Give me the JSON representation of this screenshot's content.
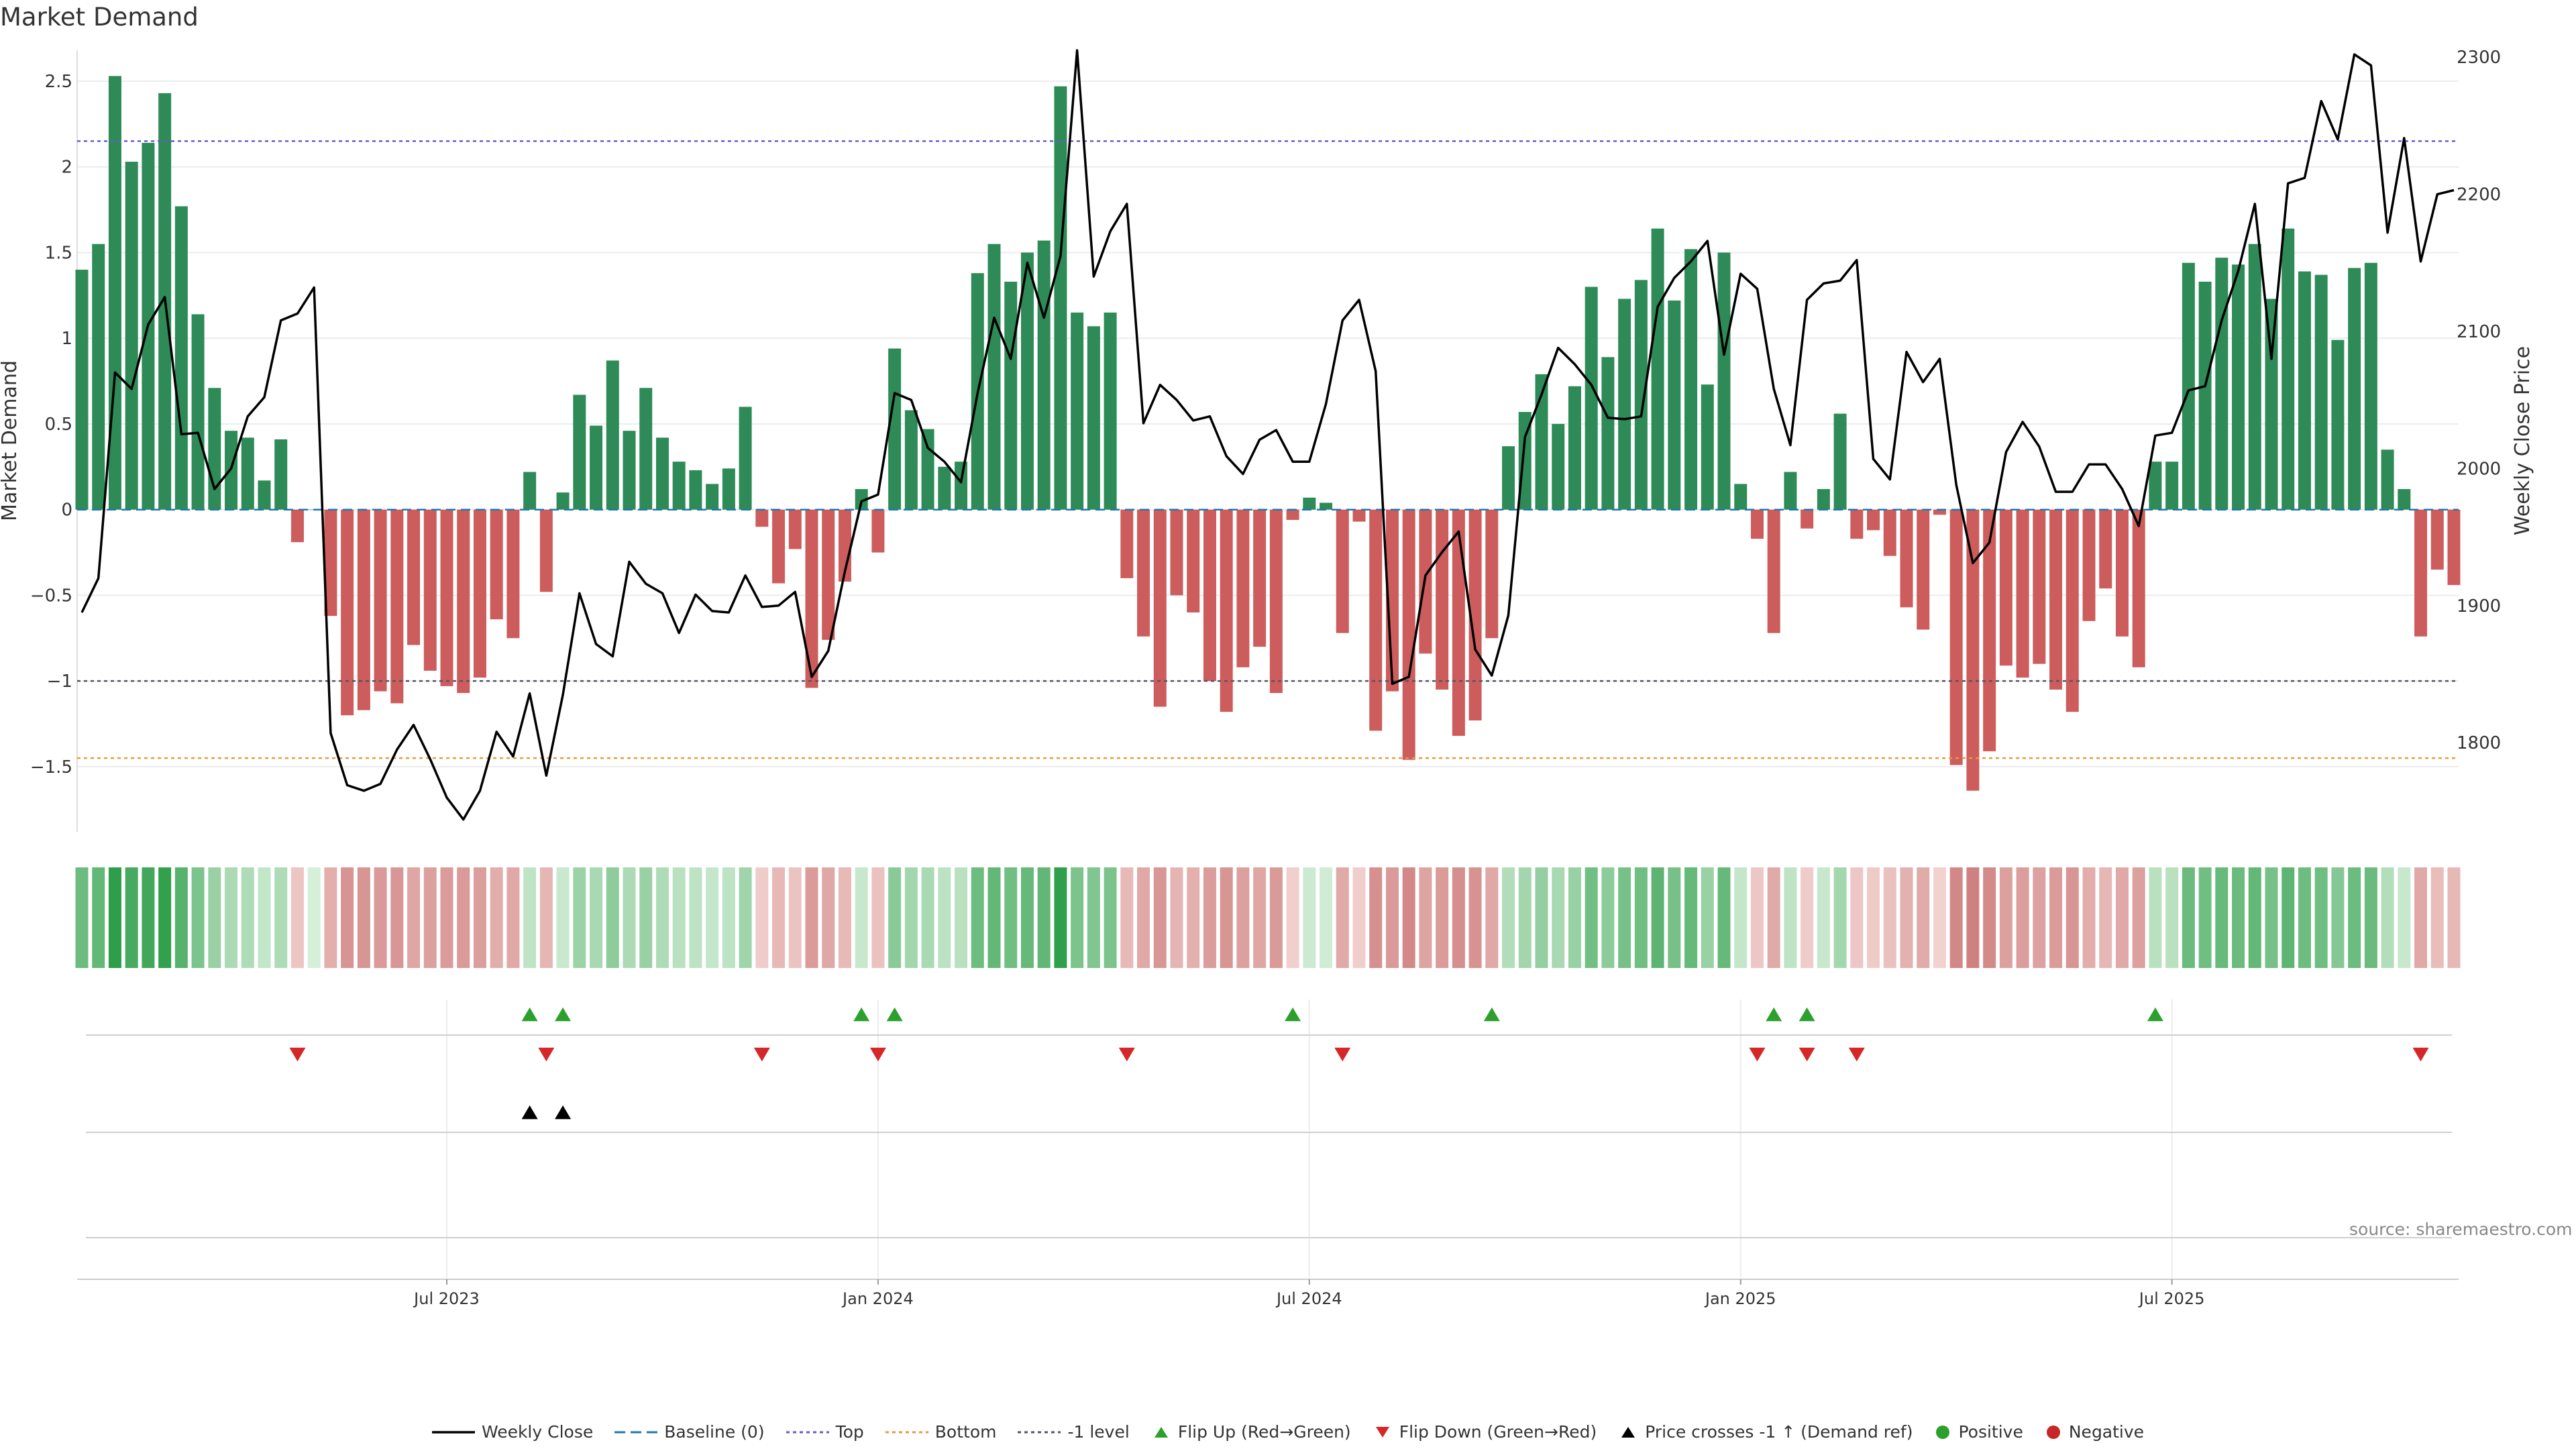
{
  "title": "Market Demand",
  "source": "source: sharemaestro.com",
  "colors": {
    "positive": "#2e8b57",
    "negative": "#cd5c5c",
    "price": "#000000",
    "top": "#6a5acd",
    "bottom": "#e69a3c",
    "minus1": "#555566",
    "baseline": "#1f77b4",
    "flip_up": "#2ca02c",
    "flip_down": "#d62728",
    "dot_pos": "#2ca02c",
    "dot_neg": "#c62828"
  },
  "legend": [
    {
      "key": "weekly_close",
      "label": "Weekly Close",
      "icon": "line-solid"
    },
    {
      "key": "baseline",
      "label": "Baseline (0)",
      "icon": "line-dash"
    },
    {
      "key": "top",
      "label": "Top",
      "icon": "line-dot-top"
    },
    {
      "key": "bottom",
      "label": "Bottom",
      "icon": "line-dot-bottom"
    },
    {
      "key": "minus1",
      "label": "-1 level",
      "icon": "line-dot-minus1"
    },
    {
      "key": "flip_up",
      "label": "Flip Up (Red→Green)",
      "icon": "triangle-up-green"
    },
    {
      "key": "flip_down",
      "label": "Flip Down (Green→Red)",
      "icon": "triangle-down-red"
    },
    {
      "key": "price_cross",
      "label": "Price crosses -1 ↑ (Demand ref)",
      "icon": "triangle-up-black"
    },
    {
      "key": "positive",
      "label": "Positive",
      "icon": "dot-green"
    },
    {
      "key": "negative",
      "label": "Negative",
      "icon": "dot-red"
    }
  ],
  "chart_data": {
    "type": "bar",
    "title": "Market Demand",
    "ylabel": "Market Demand",
    "y2label": "Weekly Close Price",
    "ylim": [
      -1.88,
      2.68
    ],
    "y2lim": [
      1735,
      2305
    ],
    "yticks": [
      -1.5,
      -1,
      -0.5,
      0,
      0.5,
      1,
      1.5,
      2,
      2.5
    ],
    "ytick_labels": [
      "−1.5",
      "−1",
      "−0.5",
      "0",
      "0.5",
      "1",
      "1.5",
      "2",
      "2.5"
    ],
    "y2ticks": [
      1800,
      1900,
      2000,
      2100,
      2200,
      2300
    ],
    "y2tick_labels": [
      "1800",
      "1900",
      "2000",
      "2100",
      "2200",
      "2300"
    ],
    "xticks": [
      {
        "week": 22,
        "label": "Jul 2023"
      },
      {
        "week": 48,
        "label": "Jan 2024"
      },
      {
        "week": 74,
        "label": "Jul 2024"
      },
      {
        "week": 100,
        "label": "Jan 2025"
      },
      {
        "week": 126,
        "label": "Jul 2025"
      }
    ],
    "levels": {
      "top": 2.15,
      "bottom": -1.45,
      "minus1": -1.0,
      "baseline": 0
    },
    "demand": [
      1.4,
      1.55,
      2.53,
      2.03,
      2.14,
      2.43,
      1.77,
      1.14,
      0.71,
      0.46,
      0.42,
      0.17,
      0.41,
      -0.19,
      0,
      -0.62,
      -1.2,
      -1.17,
      -1.06,
      -1.13,
      -0.79,
      -0.94,
      -1.03,
      -1.07,
      -0.98,
      -0.64,
      -0.75,
      0.22,
      -0.48,
      0.1,
      0.67,
      0.49,
      0.87,
      0.46,
      0.71,
      0.42,
      0.28,
      0.23,
      0.15,
      0.24,
      0.6,
      -0.1,
      -0.43,
      -0.23,
      -1.04,
      -0.76,
      -0.42,
      0.12,
      -0.25,
      0.94,
      0.58,
      0.47,
      0.25,
      0.28,
      1.38,
      1.55,
      1.33,
      1.5,
      1.57,
      2.47,
      1.15,
      1.07,
      1.15,
      -0.4,
      -0.74,
      -1.15,
      -0.5,
      -0.6,
      -1.0,
      -1.18,
      -0.92,
      -0.8,
      -1.07,
      -0.06,
      0.07,
      0.04,
      -0.72,
      -0.07,
      -1.29,
      -1.06,
      -1.46,
      -0.84,
      -1.05,
      -1.32,
      -1.23,
      -0.75,
      0.37,
      0.57,
      0.79,
      0.5,
      0.72,
      1.3,
      0.89,
      1.23,
      1.34,
      1.64,
      1.22,
      1.52,
      0.73,
      1.5,
      0.15,
      -0.17,
      -0.72,
      0.22,
      -0.11,
      0.12,
      0.56,
      -0.17,
      -0.12,
      -0.27,
      -0.57,
      -0.7,
      -0.03,
      -1.49,
      -1.64,
      -1.41,
      -0.91,
      -0.98,
      -0.9,
      -1.05,
      -1.18,
      -0.65,
      -0.46,
      -0.74,
      -0.92,
      0.28,
      0.28,
      1.44,
      1.33,
      1.47,
      1.43,
      1.55,
      1.23,
      1.64,
      1.39,
      1.37,
      0.99,
      1.41,
      1.44,
      0.35,
      0.12,
      -0.74,
      -0.35,
      -0.44
    ],
    "weekly_close": [
      1895,
      1920,
      2070,
      2058,
      2105,
      2125,
      2025,
      2026,
      1985,
      2000,
      2038,
      2052,
      2108,
      2113,
      2132,
      1807,
      1769,
      1765,
      1770,
      1795,
      1813,
      1788,
      1760,
      1744,
      1765,
      1808,
      1790,
      1836,
      1776,
      1835,
      1909,
      1872,
      1863,
      1932,
      1916,
      1909,
      1880,
      1908,
      1896,
      1895,
      1922,
      1899,
      1900,
      1910,
      1848,
      1867,
      1925,
      1976,
      1981,
      2055,
      2050,
      2015,
      2005,
      1990,
      2055,
      2110,
      2080,
      2150,
      2110,
      2155,
      2305,
      2140,
      2173,
      2193,
      2033,
      2061,
      2050,
      2035,
      2038,
      2009,
      1996,
      2021,
      2028,
      2005,
      2005,
      2047,
      2108,
      2123,
      2071,
      1843,
      1848,
      1922,
      1939,
      1954,
      1868,
      1849,
      1893,
      2023,
      2054,
      2088,
      2076,
      2061,
      2037,
      2036,
      2038,
      2118,
      2139,
      2151,
      2166,
      2083,
      2142,
      2131,
      2058,
      2017,
      2123,
      2135,
      2137,
      2152,
      2007,
      1992,
      2085,
      2063,
      2080,
      1988,
      1931,
      1946,
      2012,
      2034,
      2016,
      1983,
      1983,
      2003,
      2003,
      1985,
      1958,
      2024,
      2026,
      2057,
      2060,
      2108,
      2144,
      2193,
      2080,
      2208,
      2212,
      2268,
      2240,
      2302,
      2294,
      2172,
      2241,
      2151,
      2200,
      2203
    ],
    "flip_up": [
      27,
      29,
      47,
      49,
      73,
      85,
      102,
      104,
      125
    ],
    "flip_down": [
      13,
      28,
      41,
      48,
      63,
      76,
      101,
      104,
      107,
      141
    ],
    "price_cross_up": [
      27,
      29
    ]
  }
}
